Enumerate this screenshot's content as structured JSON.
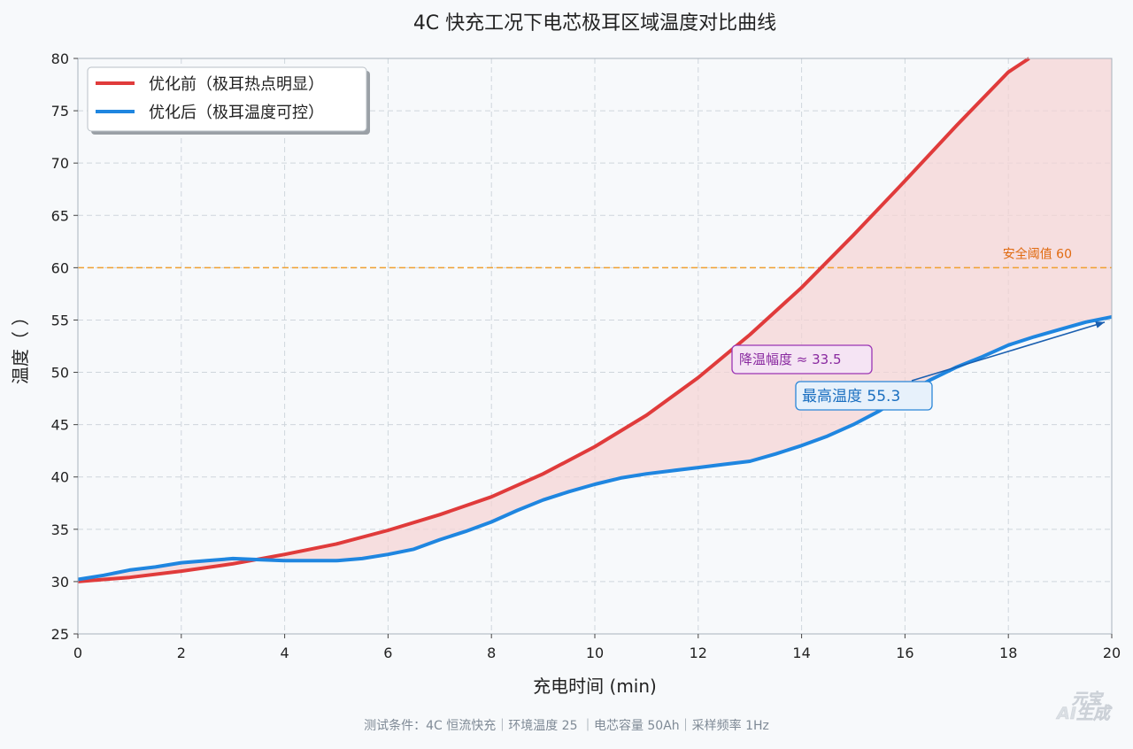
{
  "chart_data": {
    "type": "line",
    "title": "4C 快充工况下电芯极耳区域温度对比曲线",
    "xlabel": "充电时间 (min)",
    "ylabel": "温度（   ）",
    "xlim": [
      0,
      20
    ],
    "ylim": [
      25,
      80
    ],
    "xticks": [
      0,
      2,
      4,
      6,
      8,
      10,
      12,
      14,
      16,
      18,
      20
    ],
    "yticks": [
      25,
      30,
      35,
      40,
      45,
      50,
      55,
      60,
      65,
      70,
      75,
      80
    ],
    "grid": true,
    "legend_position": "top-left",
    "colors": {
      "before": "#e03b3b",
      "after": "#1f86e0",
      "fill": "#f5d3d3",
      "threshold": "#f0a030",
      "threshold_text": "#e06a10",
      "drop_annotation": "#8a2aa0",
      "max_annotation": "#1a6fc0",
      "background": "#f7f9fb"
    },
    "series": [
      {
        "name": "优化前（极耳热点明显）",
        "x": [
          0,
          1,
          2,
          3,
          4,
          5,
          6,
          7,
          8,
          9,
          10,
          11,
          12,
          13,
          14,
          15,
          16,
          17,
          18,
          18.4
        ],
        "y": [
          30.0,
          30.4,
          31.0,
          31.7,
          32.6,
          33.6,
          34.9,
          36.4,
          38.1,
          40.3,
          42.9,
          45.9,
          49.5,
          53.6,
          58.1,
          63.1,
          68.3,
          73.6,
          78.7,
          80.0
        ]
      },
      {
        "name": "优化后（极耳温度可控）",
        "x": [
          0,
          0.5,
          1,
          1.5,
          2,
          2.5,
          3,
          3.5,
          4,
          4.5,
          5,
          5.5,
          6,
          6.5,
          7,
          7.5,
          8,
          8.5,
          9,
          9.5,
          10,
          10.5,
          11,
          11.5,
          12,
          12.5,
          13,
          13.5,
          14,
          14.5,
          15,
          15.5,
          16,
          16.5,
          17,
          17.5,
          18,
          18.5,
          19,
          19.5,
          20
        ],
        "y": [
          30.2,
          30.6,
          31.1,
          31.4,
          31.8,
          32.0,
          32.2,
          32.1,
          32.0,
          32.0,
          32.0,
          32.2,
          32.6,
          33.1,
          34.0,
          34.8,
          35.7,
          36.8,
          37.8,
          38.6,
          39.3,
          39.9,
          40.3,
          40.6,
          40.9,
          41.2,
          41.5,
          42.2,
          43.0,
          43.9,
          45.0,
          46.3,
          47.9,
          49.3,
          50.5,
          51.5,
          52.6,
          53.4,
          54.1,
          54.8,
          55.3
        ]
      }
    ],
    "threshold": {
      "value": 60,
      "label": "安全阈值 60"
    },
    "annotations": [
      {
        "text": "降温幅度 ≈ 33.5",
        "x": 12.7,
        "y": 51.4
      },
      {
        "text": "最高温度 55.3",
        "x": 14.0,
        "y": 47.7,
        "arrow_to": [
          20,
          55.3
        ]
      }
    ],
    "footnote": "测试条件：4C 恒流快充｜环境温度 25    ｜电芯容量 50Ah｜采样频率 1Hz",
    "watermark": "元宝 AI生成"
  }
}
